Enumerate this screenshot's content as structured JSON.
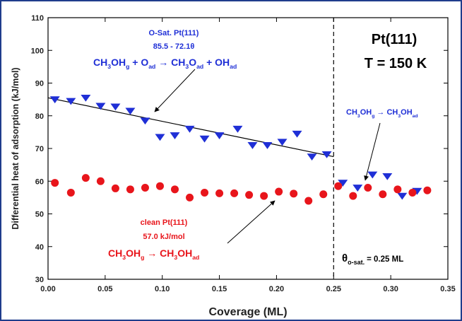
{
  "chart_data": {
    "type": "scatter",
    "xlabel": "Coverage (ML)",
    "ylabel": "Differential heat of adsorption (kJ/mol)",
    "xlim": [
      0.0,
      0.35
    ],
    "ylim": [
      30,
      110
    ],
    "x_ticks": [
      "0.00",
      "0.05",
      "0.10",
      "0.15",
      "0.20",
      "0.25",
      "0.30",
      "0.35"
    ],
    "y_ticks": [
      "30",
      "40",
      "50",
      "60",
      "70",
      "80",
      "90",
      "100",
      "110"
    ],
    "grid": false,
    "colors": {
      "o_sat": "#1f2fd6",
      "clean": "#e8151b",
      "axis": "#000000",
      "frame": "#1f3c8c"
    },
    "series": [
      {
        "name": "O-Sat. Pt(111)",
        "marker": "triangle-down",
        "points": [
          [
            0.006,
            85.0
          ],
          [
            0.02,
            84.5
          ],
          [
            0.033,
            85.5
          ],
          [
            0.046,
            83.0
          ],
          [
            0.059,
            82.8
          ],
          [
            0.072,
            81.5
          ],
          [
            0.085,
            78.5
          ],
          [
            0.098,
            73.5
          ],
          [
            0.111,
            74.0
          ],
          [
            0.124,
            76.0
          ],
          [
            0.137,
            73.0
          ],
          [
            0.15,
            74.0
          ],
          [
            0.166,
            76.0
          ],
          [
            0.179,
            71.0
          ],
          [
            0.192,
            71.0
          ],
          [
            0.205,
            72.0
          ],
          [
            0.218,
            74.5
          ],
          [
            0.231,
            67.5
          ],
          [
            0.244,
            68.2
          ],
          [
            0.258,
            59.5
          ],
          [
            0.271,
            58.0
          ],
          [
            0.284,
            62.0
          ],
          [
            0.297,
            61.5
          ],
          [
            0.31,
            55.5
          ],
          [
            0.323,
            57.0
          ]
        ]
      },
      {
        "name": "clean Pt(111)",
        "marker": "circle",
        "points": [
          [
            0.006,
            59.5
          ],
          [
            0.02,
            56.5
          ],
          [
            0.033,
            61.0
          ],
          [
            0.046,
            60.0
          ],
          [
            0.059,
            57.8
          ],
          [
            0.072,
            57.5
          ],
          [
            0.085,
            58.0
          ],
          [
            0.098,
            58.5
          ],
          [
            0.111,
            57.5
          ],
          [
            0.124,
            55.0
          ],
          [
            0.137,
            56.5
          ],
          [
            0.15,
            56.3
          ],
          [
            0.163,
            56.3
          ],
          [
            0.176,
            55.8
          ],
          [
            0.189,
            55.5
          ],
          [
            0.202,
            56.8
          ],
          [
            0.215,
            56.2
          ],
          [
            0.228,
            54.0
          ],
          [
            0.241,
            56.0
          ],
          [
            0.254,
            58.5
          ],
          [
            0.267,
            55.5
          ],
          [
            0.28,
            58.0
          ],
          [
            0.293,
            56.0
          ],
          [
            0.306,
            57.5
          ],
          [
            0.319,
            56.5
          ],
          [
            0.332,
            57.2
          ]
        ]
      }
    ],
    "fit_line": {
      "x": [
        0.0,
        0.25
      ],
      "y": [
        85.5,
        67.5
      ]
    },
    "vline_x": 0.25
  },
  "annotations": {
    "osat_title": "O-Sat. Pt(111)",
    "osat_fit": "85.5 - 72.1θ",
    "clean_title": "clean Pt(111)",
    "clean_value": "57.0 kJ/mol",
    "surface": "Pt(111)",
    "temperature": "T = 150 K",
    "theta_symbol": "θ",
    "theta_sub": "o-sat.",
    "theta_value": "= 0.25 ML"
  },
  "reactions": {
    "osat": [
      {
        "t": "CH"
      },
      {
        "t": "3",
        "s": "sub"
      },
      {
        "t": "OH"
      },
      {
        "t": "g",
        "s": "sub"
      },
      {
        "t": " + O"
      },
      {
        "t": "ad",
        "s": "sub"
      },
      {
        "t": " → CH"
      },
      {
        "t": "3",
        "s": "sub"
      },
      {
        "t": "O"
      },
      {
        "t": "ad",
        "s": "sub"
      },
      {
        "t": " + OH"
      },
      {
        "t": "ad",
        "s": "sub"
      }
    ],
    "high": [
      {
        "t": "CH"
      },
      {
        "t": "3",
        "s": "sub"
      },
      {
        "t": "OH"
      },
      {
        "t": "g",
        "s": "sub"
      },
      {
        "t": " → CH"
      },
      {
        "t": "3",
        "s": "sub"
      },
      {
        "t": "OH"
      },
      {
        "t": "ad",
        "s": "sub"
      }
    ],
    "clean": [
      {
        "t": "CH"
      },
      {
        "t": "3",
        "s": "sub"
      },
      {
        "t": "OH"
      },
      {
        "t": "g",
        "s": "sub"
      },
      {
        "t": " → CH"
      },
      {
        "t": "3",
        "s": "sub"
      },
      {
        "t": "OH"
      },
      {
        "t": "ad",
        "s": "sub"
      }
    ]
  }
}
